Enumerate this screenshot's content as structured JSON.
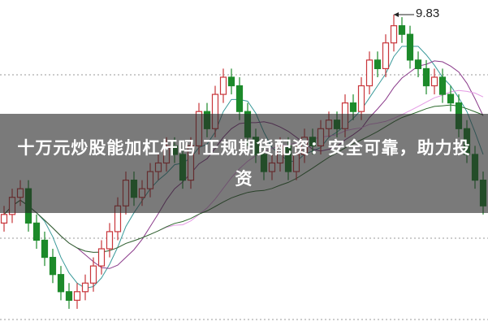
{
  "title_overlay": "十万元炒股能加杠杆吗 正规期货配资：安全可靠，助力投资",
  "chart_data": {
    "type": "candlestick",
    "title": "",
    "xlabel": "",
    "ylabel": "",
    "ylim": [
      6.2,
      10.0
    ],
    "grid": "dotted horizontal",
    "annotations": [
      {
        "text": "9.83",
        "target": "highest high"
      }
    ],
    "colors": {
      "up": "#c8353a",
      "down": "#1c8a2a",
      "ma5": "#3a9a9a",
      "ma10": "#8a3a8a",
      "ma20": "#e49ae4",
      "ma30": "#2d6a2d"
    },
    "moving_averages": [
      5,
      10,
      20,
      30
    ],
    "ohlc": [
      [
        7.4,
        7.6,
        7.3,
        7.5
      ],
      [
        7.5,
        7.8,
        7.4,
        7.7
      ],
      [
        7.7,
        7.9,
        7.6,
        7.8
      ],
      [
        7.8,
        7.9,
        7.3,
        7.4
      ],
      [
        7.4,
        7.5,
        7.1,
        7.2
      ],
      [
        7.2,
        7.3,
        6.9,
        7.0
      ],
      [
        7.0,
        7.1,
        6.7,
        6.8
      ],
      [
        6.8,
        6.9,
        6.5,
        6.6
      ],
      [
        6.6,
        6.7,
        6.4,
        6.5
      ],
      [
        6.5,
        6.7,
        6.4,
        6.6
      ],
      [
        6.6,
        6.8,
        6.5,
        6.7
      ],
      [
        6.7,
        7.0,
        6.6,
        6.9
      ],
      [
        6.9,
        7.2,
        6.8,
        7.1
      ],
      [
        7.1,
        7.4,
        7.0,
        7.3
      ],
      [
        7.3,
        7.7,
        7.2,
        7.6
      ],
      [
        7.6,
        8.0,
        7.5,
        7.9
      ],
      [
        7.9,
        8.0,
        7.6,
        7.7
      ],
      [
        7.7,
        7.9,
        7.6,
        7.8
      ],
      [
        7.8,
        8.1,
        7.7,
        8.0
      ],
      [
        8.0,
        8.2,
        7.9,
        8.1
      ],
      [
        8.1,
        8.4,
        8.0,
        8.3
      ],
      [
        8.3,
        8.4,
        8.1,
        8.2
      ],
      [
        8.2,
        8.3,
        7.8,
        7.9
      ],
      [
        7.9,
        8.4,
        7.8,
        8.3
      ],
      [
        8.3,
        8.8,
        8.2,
        8.7
      ],
      [
        8.7,
        8.8,
        8.4,
        8.5
      ],
      [
        8.5,
        9.0,
        8.4,
        8.9
      ],
      [
        8.9,
        9.2,
        8.8,
        9.1
      ],
      [
        9.1,
        9.2,
        8.9,
        9.0
      ],
      [
        9.0,
        9.1,
        8.6,
        8.7
      ],
      [
        8.7,
        8.8,
        8.3,
        8.4
      ],
      [
        8.4,
        8.5,
        8.1,
        8.2
      ],
      [
        8.2,
        8.3,
        7.9,
        8.0
      ],
      [
        8.0,
        8.2,
        7.9,
        8.1
      ],
      [
        8.1,
        8.4,
        8.0,
        8.3
      ],
      [
        8.3,
        8.4,
        7.9,
        8.0
      ],
      [
        8.0,
        8.3,
        7.9,
        8.2
      ],
      [
        8.2,
        8.5,
        8.1,
        8.4
      ],
      [
        8.4,
        8.5,
        8.2,
        8.3
      ],
      [
        8.3,
        8.6,
        8.2,
        8.5
      ],
      [
        8.5,
        8.7,
        8.4,
        8.6
      ],
      [
        8.6,
        8.7,
        8.4,
        8.5
      ],
      [
        8.5,
        8.9,
        8.4,
        8.8
      ],
      [
        8.8,
        8.9,
        8.6,
        8.7
      ],
      [
        8.7,
        9.1,
        8.6,
        9.0
      ],
      [
        9.0,
        9.4,
        8.9,
        9.3
      ],
      [
        9.3,
        9.4,
        9.1,
        9.2
      ],
      [
        9.2,
        9.6,
        9.1,
        9.5
      ],
      [
        9.5,
        9.83,
        9.4,
        9.7
      ],
      [
        9.7,
        9.8,
        9.5,
        9.6
      ],
      [
        9.6,
        9.7,
        9.2,
        9.3
      ],
      [
        9.3,
        9.4,
        9.1,
        9.2
      ],
      [
        9.2,
        9.3,
        8.9,
        9.0
      ],
      [
        9.0,
        9.2,
        8.9,
        9.1
      ],
      [
        9.1,
        9.2,
        8.8,
        8.9
      ],
      [
        8.9,
        9.0,
        8.7,
        8.8
      ],
      [
        8.8,
        8.9,
        8.4,
        8.5
      ],
      [
        8.5,
        8.6,
        8.1,
        8.2
      ],
      [
        8.2,
        8.3,
        7.8,
        7.9
      ],
      [
        7.9,
        8.0,
        7.5,
        7.6
      ]
    ],
    "peak_label": "9.83"
  }
}
